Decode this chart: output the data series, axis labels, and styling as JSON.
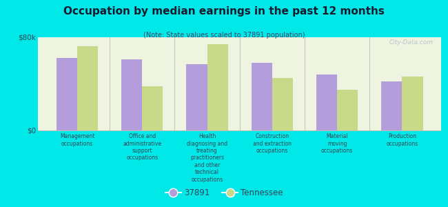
{
  "title": "Occupation by median earnings in the past 12 months",
  "subtitle": "(Note: State values scaled to 37891 population)",
  "background_color": "#00e8e8",
  "plot_bg_color": "#eef4e0",
  "categories": [
    "Management\noccupations",
    "Office and\nadministrative\nsupport\noccupations",
    "Health\ndiagnosing and\ntreating\npractitioners\nand other\ntechnical\noccupations",
    "Construction\nand extraction\noccupations",
    "Material\nmoving\noccupations",
    "Production\noccupations"
  ],
  "values_37891": [
    62000,
    61000,
    57000,
    58000,
    48000,
    42000
  ],
  "values_tennessee": [
    72000,
    38000,
    74000,
    45000,
    35000,
    46000
  ],
  "color_37891": "#b39ddb",
  "color_tennessee": "#c8d98a",
  "ylim": [
    0,
    80000
  ],
  "yticks": [
    0,
    80000
  ],
  "ytick_labels": [
    "$0",
    "$80k"
  ],
  "legend_37891": "37891",
  "legend_tennessee": "Tennessee",
  "watermark": "City-Data.com"
}
